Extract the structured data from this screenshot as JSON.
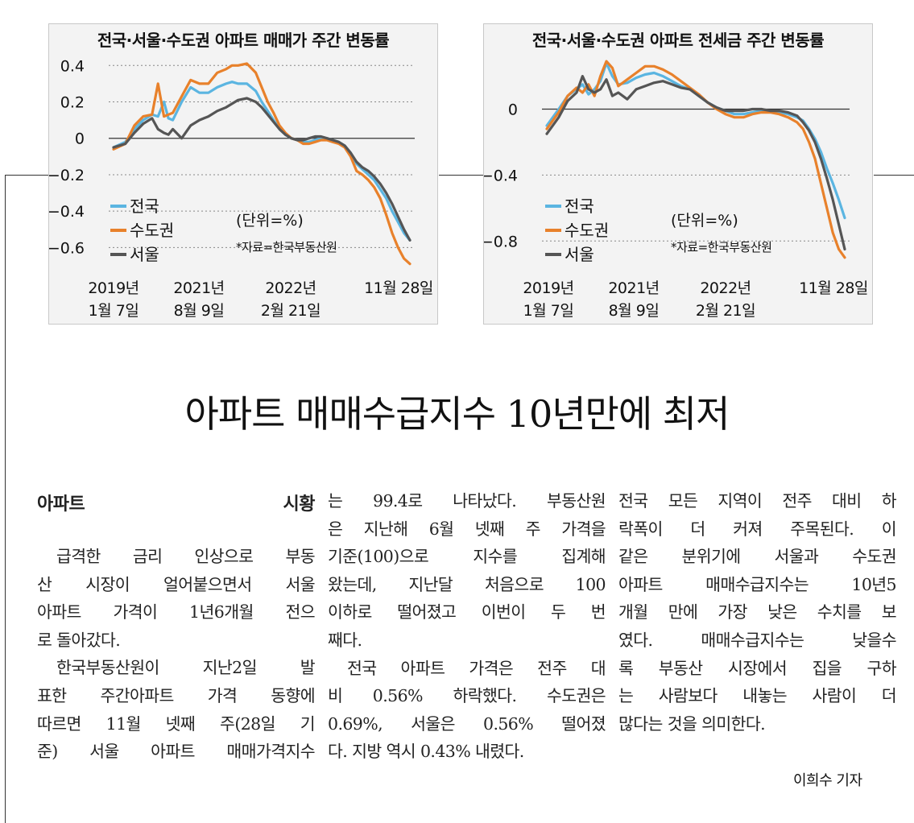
{
  "charts": [
    {
      "title": "전국·서울·수도권 아파트 매매가 주간 변동률",
      "unit_note": "(단위=%)",
      "source_note": "*자료=한국부동산원",
      "x_labels": [
        {
          "line1": "2019년",
          "line2": "1월 7일"
        },
        {
          "line1": "2021년",
          "line2": "8월 9일"
        },
        {
          "line1": "2022년",
          "line2": "2월 21일"
        },
        {
          "line1": "11월 28일",
          "line2": ""
        }
      ],
      "legend": [
        "전국",
        "수도권",
        "서울"
      ]
    },
    {
      "title": "전국·서울·수도권 아파트 전세금 주간 변동률",
      "unit_note": "(단위=%)",
      "source_note": "*자료=한국부동산원",
      "x_labels": [
        {
          "line1": "2019년",
          "line2": "1월 7일"
        },
        {
          "line1": "2021년",
          "line2": "8월 9일"
        },
        {
          "line1": "2022년",
          "line2": "2월 21일"
        },
        {
          "line1": "11월 28일",
          "line2": ""
        }
      ],
      "legend": [
        "전국",
        "수도권",
        "서울"
      ]
    }
  ],
  "chart_data": [
    {
      "type": "line",
      "title": "전국·서울·수도권 아파트 매매가 주간 변동률",
      "ylabel": "(단위=%)",
      "ylim": [
        -0.7,
        0.45
      ],
      "y_ticks": [
        "0.4",
        "0.2",
        "0",
        "−0.2",
        "−0.4",
        "−0.6"
      ],
      "y_tick_values": [
        0.4,
        0.2,
        0,
        -0.2,
        -0.4,
        -0.6
      ],
      "x": [
        0,
        8,
        14,
        20,
        26,
        30,
        34,
        37,
        40,
        46,
        52,
        58,
        64,
        70,
        76,
        80,
        84,
        90,
        96,
        100,
        104,
        108,
        112,
        116,
        120,
        124,
        128,
        132,
        136,
        140,
        144,
        148,
        152,
        156,
        160,
        164,
        168,
        172,
        176,
        180,
        184,
        188,
        192,
        196,
        200
      ],
      "series": [
        {
          "name": "전국",
          "color": "#5bb5e1",
          "values": [
            -0.05,
            -0.02,
            0.05,
            0.1,
            0.13,
            0.12,
            0.2,
            0.11,
            0.1,
            0.2,
            0.28,
            0.25,
            0.25,
            0.28,
            0.3,
            0.31,
            0.3,
            0.3,
            0.26,
            0.2,
            0.15,
            0.1,
            0.05,
            0.02,
            0.0,
            -0.01,
            -0.02,
            -0.02,
            -0.01,
            0.0,
            0.0,
            -0.01,
            -0.02,
            -0.04,
            -0.08,
            -0.14,
            -0.17,
            -0.2,
            -0.23,
            -0.28,
            -0.33,
            -0.4,
            -0.46,
            -0.52,
            -0.56
          ]
        },
        {
          "name": "수도권",
          "color": "#e8812b",
          "values": [
            -0.06,
            -0.03,
            0.07,
            0.12,
            0.13,
            0.3,
            0.12,
            0.13,
            0.14,
            0.23,
            0.32,
            0.3,
            0.3,
            0.36,
            0.38,
            0.4,
            0.4,
            0.41,
            0.36,
            0.28,
            0.2,
            0.14,
            0.07,
            0.03,
            0.0,
            -0.01,
            -0.03,
            -0.03,
            -0.02,
            -0.01,
            -0.01,
            -0.02,
            -0.03,
            -0.05,
            -0.1,
            -0.18,
            -0.2,
            -0.23,
            -0.27,
            -0.33,
            -0.42,
            -0.52,
            -0.6,
            -0.66,
            -0.69
          ]
        },
        {
          "name": "서울",
          "color": "#555555",
          "values": [
            -0.05,
            -0.03,
            0.03,
            0.08,
            0.11,
            0.05,
            0.03,
            0.02,
            0.05,
            0.0,
            0.07,
            0.1,
            0.12,
            0.15,
            0.17,
            0.19,
            0.21,
            0.22,
            0.2,
            0.17,
            0.13,
            0.09,
            0.05,
            0.02,
            0.0,
            -0.01,
            -0.01,
            0.0,
            0.01,
            0.01,
            0.0,
            -0.01,
            -0.02,
            -0.04,
            -0.08,
            -0.13,
            -0.16,
            -0.18,
            -0.21,
            -0.25,
            -0.3,
            -0.36,
            -0.43,
            -0.5,
            -0.56
          ]
        }
      ]
    },
    {
      "type": "line",
      "title": "전국·서울·수도권 아파트 전세금 주간 변동률",
      "ylabel": "(단위=%)",
      "ylim": [
        -0.95,
        0.32
      ],
      "y_ticks": [
        "0",
        "−0.4",
        "−0.8"
      ],
      "y_tick_values": [
        0,
        -0.4,
        -0.8
      ],
      "x": [
        0,
        8,
        14,
        20,
        24,
        28,
        32,
        36,
        40,
        44,
        48,
        54,
        60,
        66,
        72,
        78,
        84,
        90,
        96,
        102,
        108,
        114,
        120,
        126,
        132,
        138,
        144,
        150,
        156,
        162,
        168,
        172,
        176,
        180,
        184,
        188,
        192,
        196,
        200
      ],
      "series": [
        {
          "name": "전국",
          "color": "#5bb5e1",
          "values": [
            -0.1,
            0.0,
            0.08,
            0.12,
            0.15,
            0.09,
            0.12,
            0.17,
            0.28,
            0.2,
            0.15,
            0.16,
            0.19,
            0.21,
            0.22,
            0.2,
            0.17,
            0.14,
            0.12,
            0.08,
            0.04,
            0.01,
            -0.01,
            -0.03,
            -0.03,
            -0.02,
            -0.01,
            -0.01,
            -0.02,
            -0.03,
            -0.05,
            -0.07,
            -0.12,
            -0.18,
            -0.26,
            -0.36,
            -0.45,
            -0.55,
            -0.66
          ]
        },
        {
          "name": "수도권",
          "color": "#e8812b",
          "values": [
            -0.12,
            -0.02,
            0.08,
            0.13,
            0.1,
            0.15,
            0.08,
            0.2,
            0.29,
            0.25,
            0.14,
            0.18,
            0.22,
            0.26,
            0.26,
            0.24,
            0.21,
            0.17,
            0.13,
            0.09,
            0.04,
            0.0,
            -0.03,
            -0.05,
            -0.05,
            -0.03,
            -0.02,
            -0.02,
            -0.03,
            -0.05,
            -0.08,
            -0.12,
            -0.2,
            -0.3,
            -0.45,
            -0.6,
            -0.75,
            -0.85,
            -0.9
          ]
        },
        {
          "name": "서울",
          "color": "#555555",
          "values": [
            -0.15,
            -0.05,
            0.05,
            0.1,
            0.2,
            0.12,
            0.1,
            0.12,
            0.18,
            0.08,
            0.1,
            0.06,
            0.12,
            0.14,
            0.16,
            0.17,
            0.15,
            0.13,
            0.12,
            0.08,
            0.04,
            0.01,
            -0.01,
            -0.01,
            -0.01,
            0.0,
            0.0,
            -0.01,
            -0.01,
            -0.02,
            -0.04,
            -0.08,
            -0.13,
            -0.2,
            -0.3,
            -0.42,
            -0.55,
            -0.7,
            -0.85
          ]
        }
      ]
    }
  ],
  "headline": "아파트 매매수급지수 10년만에 최저",
  "article": {
    "section": "아파트 시황",
    "col1": [
      "급격한 금리 인상으로 부동",
      "산 시장이 얼어붙으면서 서울",
      "아파트 가격이 1년6개월 전으",
      "로 돌아갔다.",
      "한국부동산원이 지난2일 발",
      "표한 주간아파트 가격 동향에",
      "따르면 11월 넷째 주(28일 기",
      "준) 서울 아파트 매매가격지수"
    ],
    "col2": [
      "는 99.4로 나타났다. 부동산원",
      "은 지난해 6월 넷째 주 가격을",
      "기준(100)으로 지수를 집계해",
      "왔는데, 지난달 처음으로 100",
      "이하로 떨어졌고 이번이 두 번",
      "째다.",
      "전국 아파트 가격은 전주 대",
      "비 0.56% 하락했다. 수도권은",
      "0.69%, 서울은 0.56% 떨어졌",
      "다. 지방 역시 0.43% 내렸다."
    ],
    "col3": [
      "전국 모든 지역이 전주 대비 하",
      "락폭이 더 커져 주목된다. 이",
      "같은 분위기에 서울과 수도권",
      "아파트 매매수급지수는 10년5",
      "개월 만에 가장 낮은 수치를 보",
      "였다. 매매수급지수는 낮을수",
      "록 부동산 시장에서 집을 구하",
      "는 사람보다 내놓는 사람이 더",
      "많다는 것을 의미한다."
    ],
    "byline": "이희수 기자"
  }
}
